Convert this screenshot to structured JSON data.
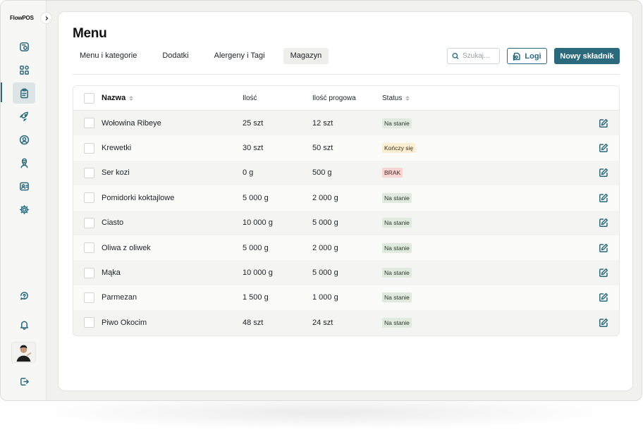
{
  "app": {
    "logo": "FlowPOS"
  },
  "sidebar": {
    "items": [
      {
        "icon": "orders-icon",
        "active": false
      },
      {
        "icon": "grid-icon",
        "active": false
      },
      {
        "icon": "clipboard-icon",
        "active": true
      },
      {
        "icon": "rocket-icon",
        "active": false
      },
      {
        "icon": "user-circle-icon",
        "active": false
      },
      {
        "icon": "chef-icon",
        "active": false
      },
      {
        "icon": "contacts-icon",
        "active": false
      },
      {
        "icon": "gear-icon",
        "active": false
      }
    ],
    "bottom": [
      {
        "icon": "support-icon"
      },
      {
        "icon": "bell-icon"
      },
      {
        "icon": "logout-icon"
      }
    ]
  },
  "page": {
    "title": "Menu"
  },
  "tabs": [
    {
      "label": "Menu i kategorie",
      "active": false
    },
    {
      "label": "Dodatki",
      "active": false
    },
    {
      "label": "Alergeny i Tagi",
      "active": false
    },
    {
      "label": "Magazyn",
      "active": true
    }
  ],
  "toolbar": {
    "search_placeholder": "Szukaj...",
    "logs_label": "Logi",
    "new_label": "Nowy składnik"
  },
  "table": {
    "headers": {
      "name": "Nazwa",
      "qty": "Ilość",
      "threshold": "Ilość progowa",
      "status": "Status"
    },
    "rows": [
      {
        "name": "Wołowina Ribeye",
        "qty": "25 szt",
        "threshold": "12 szt",
        "status": "Na stanie",
        "status_type": "ok"
      },
      {
        "name": "Krewetki",
        "qty": "30 szt",
        "threshold": "50 szt",
        "status": "Kończy się",
        "status_type": "low"
      },
      {
        "name": "Ser kozi",
        "qty": "0 g",
        "threshold": "500 g",
        "status": "BRAK",
        "status_type": "out"
      },
      {
        "name": "Pomidorki koktajlowe",
        "qty": "5 000 g",
        "threshold": "2 000 g",
        "status": "Na stanie",
        "status_type": "ok"
      },
      {
        "name": "Ciasto",
        "qty": "10 000 g",
        "threshold": "5 000 g",
        "status": "Na stanie",
        "status_type": "ok"
      },
      {
        "name": "Oliwa z oliwek",
        "qty": "5 000 g",
        "threshold": "2 000 g",
        "status": "Na stanie",
        "status_type": "ok"
      },
      {
        "name": "Mąka",
        "qty": "10 000 g",
        "threshold": "5 000 g",
        "status": "Na stanie",
        "status_type": "ok"
      },
      {
        "name": "Parmezan",
        "qty": "1 500 g",
        "threshold": "1 000 g",
        "status": "Na stanie",
        "status_type": "ok"
      },
      {
        "name": "Piwo Okocim",
        "qty": "48 szt",
        "threshold": "24 szt",
        "status": "Na stanie",
        "status_type": "ok"
      }
    ]
  },
  "colors": {
    "accent": "#2a6a7c",
    "ok": "#e1eadf",
    "low": "#fbeed2",
    "out": "#f6d5d2"
  }
}
